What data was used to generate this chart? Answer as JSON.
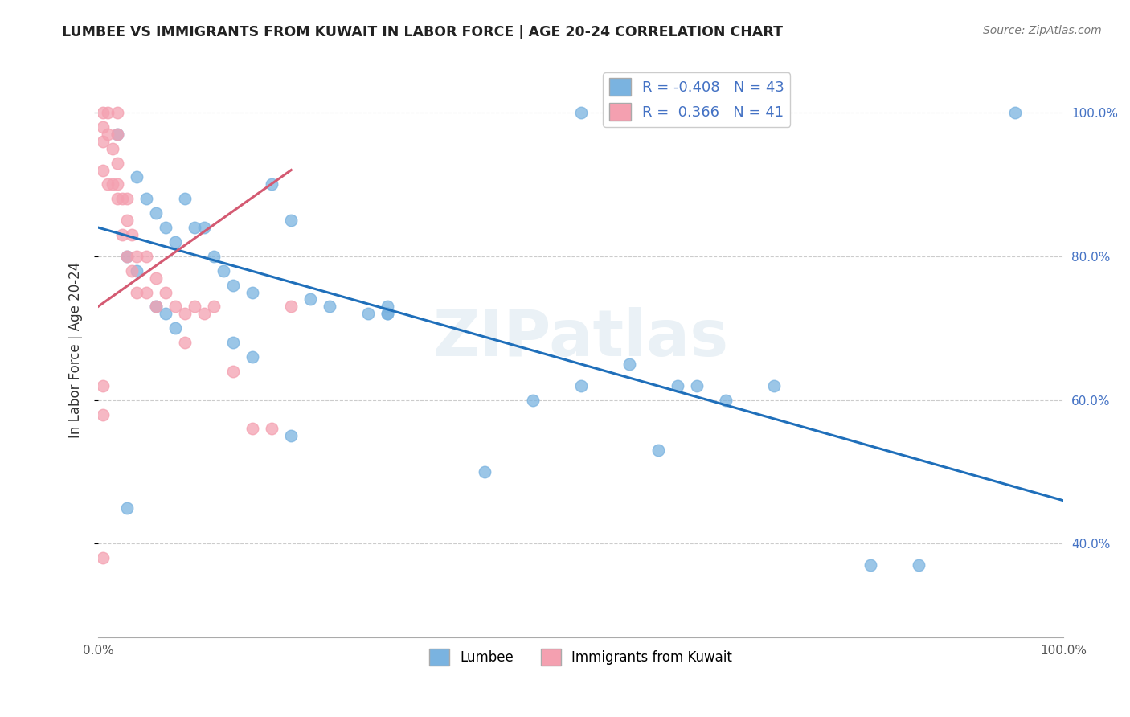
{
  "title": "LUMBEE VS IMMIGRANTS FROM KUWAIT IN LABOR FORCE | AGE 20-24 CORRELATION CHART",
  "source": "Source: ZipAtlas.com",
  "ylabel": "In Labor Force | Age 20-24",
  "xlim": [
    0.0,
    1.0
  ],
  "ylim": [
    0.27,
    1.07
  ],
  "x_ticks": [
    0.0,
    0.2,
    0.4,
    0.6,
    0.8,
    1.0
  ],
  "x_tick_labels": [
    "0.0%",
    "",
    "",
    "",
    "",
    "100.0%"
  ],
  "y_tick_labels_right": [
    "40.0%",
    "60.0%",
    "80.0%",
    "100.0%"
  ],
  "y_ticks_right": [
    0.4,
    0.6,
    0.8,
    1.0
  ],
  "R_blue": -0.408,
  "N_blue": 43,
  "R_pink": 0.366,
  "N_pink": 41,
  "blue_color": "#7ab3e0",
  "pink_color": "#f4a0b0",
  "blue_line_color": "#1f6fba",
  "pink_line_color": "#d45a72",
  "watermark": "ZIPatlas",
  "blue_x": [
    0.5,
    0.95,
    0.02,
    0.04,
    0.05,
    0.06,
    0.07,
    0.08,
    0.09,
    0.1,
    0.11,
    0.12,
    0.13,
    0.14,
    0.16,
    0.18,
    0.2,
    0.22,
    0.24,
    0.3,
    0.3,
    0.4,
    0.45,
    0.55,
    0.58,
    0.6,
    0.62,
    0.65,
    0.7,
    0.8,
    0.85,
    0.03,
    0.04,
    0.06,
    0.07,
    0.08,
    0.14,
    0.16,
    0.2,
    0.28,
    0.3,
    0.5,
    0.03
  ],
  "blue_y": [
    1.0,
    1.0,
    0.97,
    0.91,
    0.88,
    0.86,
    0.84,
    0.82,
    0.88,
    0.84,
    0.84,
    0.8,
    0.78,
    0.76,
    0.75,
    0.9,
    0.85,
    0.74,
    0.73,
    0.72,
    0.72,
    0.5,
    0.6,
    0.65,
    0.53,
    0.62,
    0.62,
    0.6,
    0.62,
    0.37,
    0.37,
    0.8,
    0.78,
    0.73,
    0.72,
    0.7,
    0.68,
    0.66,
    0.55,
    0.72,
    0.73,
    0.62,
    0.45
  ],
  "pink_x": [
    0.005,
    0.005,
    0.005,
    0.005,
    0.01,
    0.01,
    0.01,
    0.015,
    0.015,
    0.02,
    0.02,
    0.02,
    0.02,
    0.02,
    0.025,
    0.025,
    0.03,
    0.03,
    0.03,
    0.035,
    0.035,
    0.04,
    0.04,
    0.05,
    0.05,
    0.06,
    0.06,
    0.07,
    0.08,
    0.09,
    0.09,
    0.1,
    0.11,
    0.12,
    0.14,
    0.16,
    0.18,
    0.2,
    0.005,
    0.005,
    0.005
  ],
  "pink_y": [
    1.0,
    0.98,
    0.96,
    0.92,
    1.0,
    0.97,
    0.9,
    0.95,
    0.9,
    1.0,
    0.97,
    0.93,
    0.9,
    0.88,
    0.88,
    0.83,
    0.88,
    0.85,
    0.8,
    0.83,
    0.78,
    0.8,
    0.75,
    0.8,
    0.75,
    0.77,
    0.73,
    0.75,
    0.73,
    0.72,
    0.68,
    0.73,
    0.72,
    0.73,
    0.64,
    0.56,
    0.56,
    0.73,
    0.62,
    0.58,
    0.38
  ],
  "blue_trend_x": [
    0.0,
    1.0
  ],
  "blue_trend_y": [
    0.84,
    0.46
  ],
  "pink_trend_x": [
    0.0,
    0.2
  ],
  "pink_trend_y": [
    0.73,
    0.92
  ]
}
